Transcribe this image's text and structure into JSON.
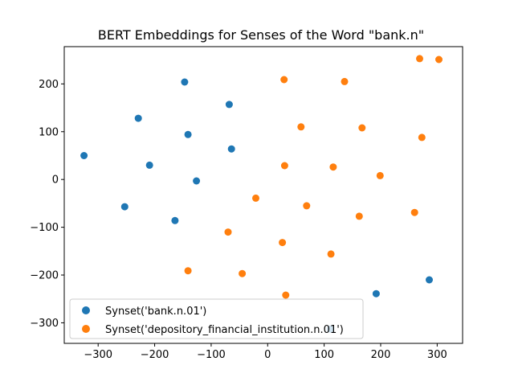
{
  "chart_data": {
    "type": "scatter",
    "title": "BERT Embeddings for Senses of the Word \"bank.n\"",
    "xlabel": "",
    "ylabel": "",
    "xlim": [
      -360,
      345
    ],
    "ylim": [
      -343,
      278
    ],
    "x_ticks": [
      -300,
      -200,
      -100,
      0,
      100,
      200,
      300
    ],
    "y_ticks": [
      -300,
      -200,
      -100,
      0,
      100,
      200
    ],
    "x_tick_labels": [
      "−300",
      "−200",
      "−100",
      "0",
      "100",
      "200",
      "300"
    ],
    "y_tick_labels": [
      "−300",
      "−200",
      "−100",
      "0",
      "100",
      "200"
    ],
    "grid": false,
    "legend_position": "lower-left",
    "series": [
      {
        "name": "Synset('bank.n.01')",
        "color": "#1f77b4",
        "points": [
          [
            -325,
            50
          ],
          [
            -253,
            -57
          ],
          [
            -229,
            128
          ],
          [
            -209,
            30
          ],
          [
            -164,
            -86
          ],
          [
            -147,
            204
          ],
          [
            -141,
            94
          ],
          [
            -126,
            -3
          ],
          [
            -68,
            157
          ],
          [
            -64,
            64
          ],
          [
            192,
            -239
          ],
          [
            286,
            -210
          ],
          [
            111,
            -313
          ]
        ]
      },
      {
        "name": "Synset('depository_financial_institution.n.01')",
        "color": "#ff7f0e",
        "points": [
          [
            269,
            253
          ],
          [
            303,
            251
          ],
          [
            29,
            209
          ],
          [
            136,
            205
          ],
          [
            59,
            110
          ],
          [
            167,
            108
          ],
          [
            273,
            88
          ],
          [
            30,
            29
          ],
          [
            116,
            26
          ],
          [
            199,
            8
          ],
          [
            -21,
            -39
          ],
          [
            69,
            -55
          ],
          [
            162,
            -77
          ],
          [
            260,
            -69
          ],
          [
            -70,
            -110
          ],
          [
            26,
            -132
          ],
          [
            112,
            -156
          ],
          [
            -141,
            -191
          ],
          [
            -45,
            -197
          ],
          [
            32,
            -242
          ]
        ]
      }
    ]
  }
}
